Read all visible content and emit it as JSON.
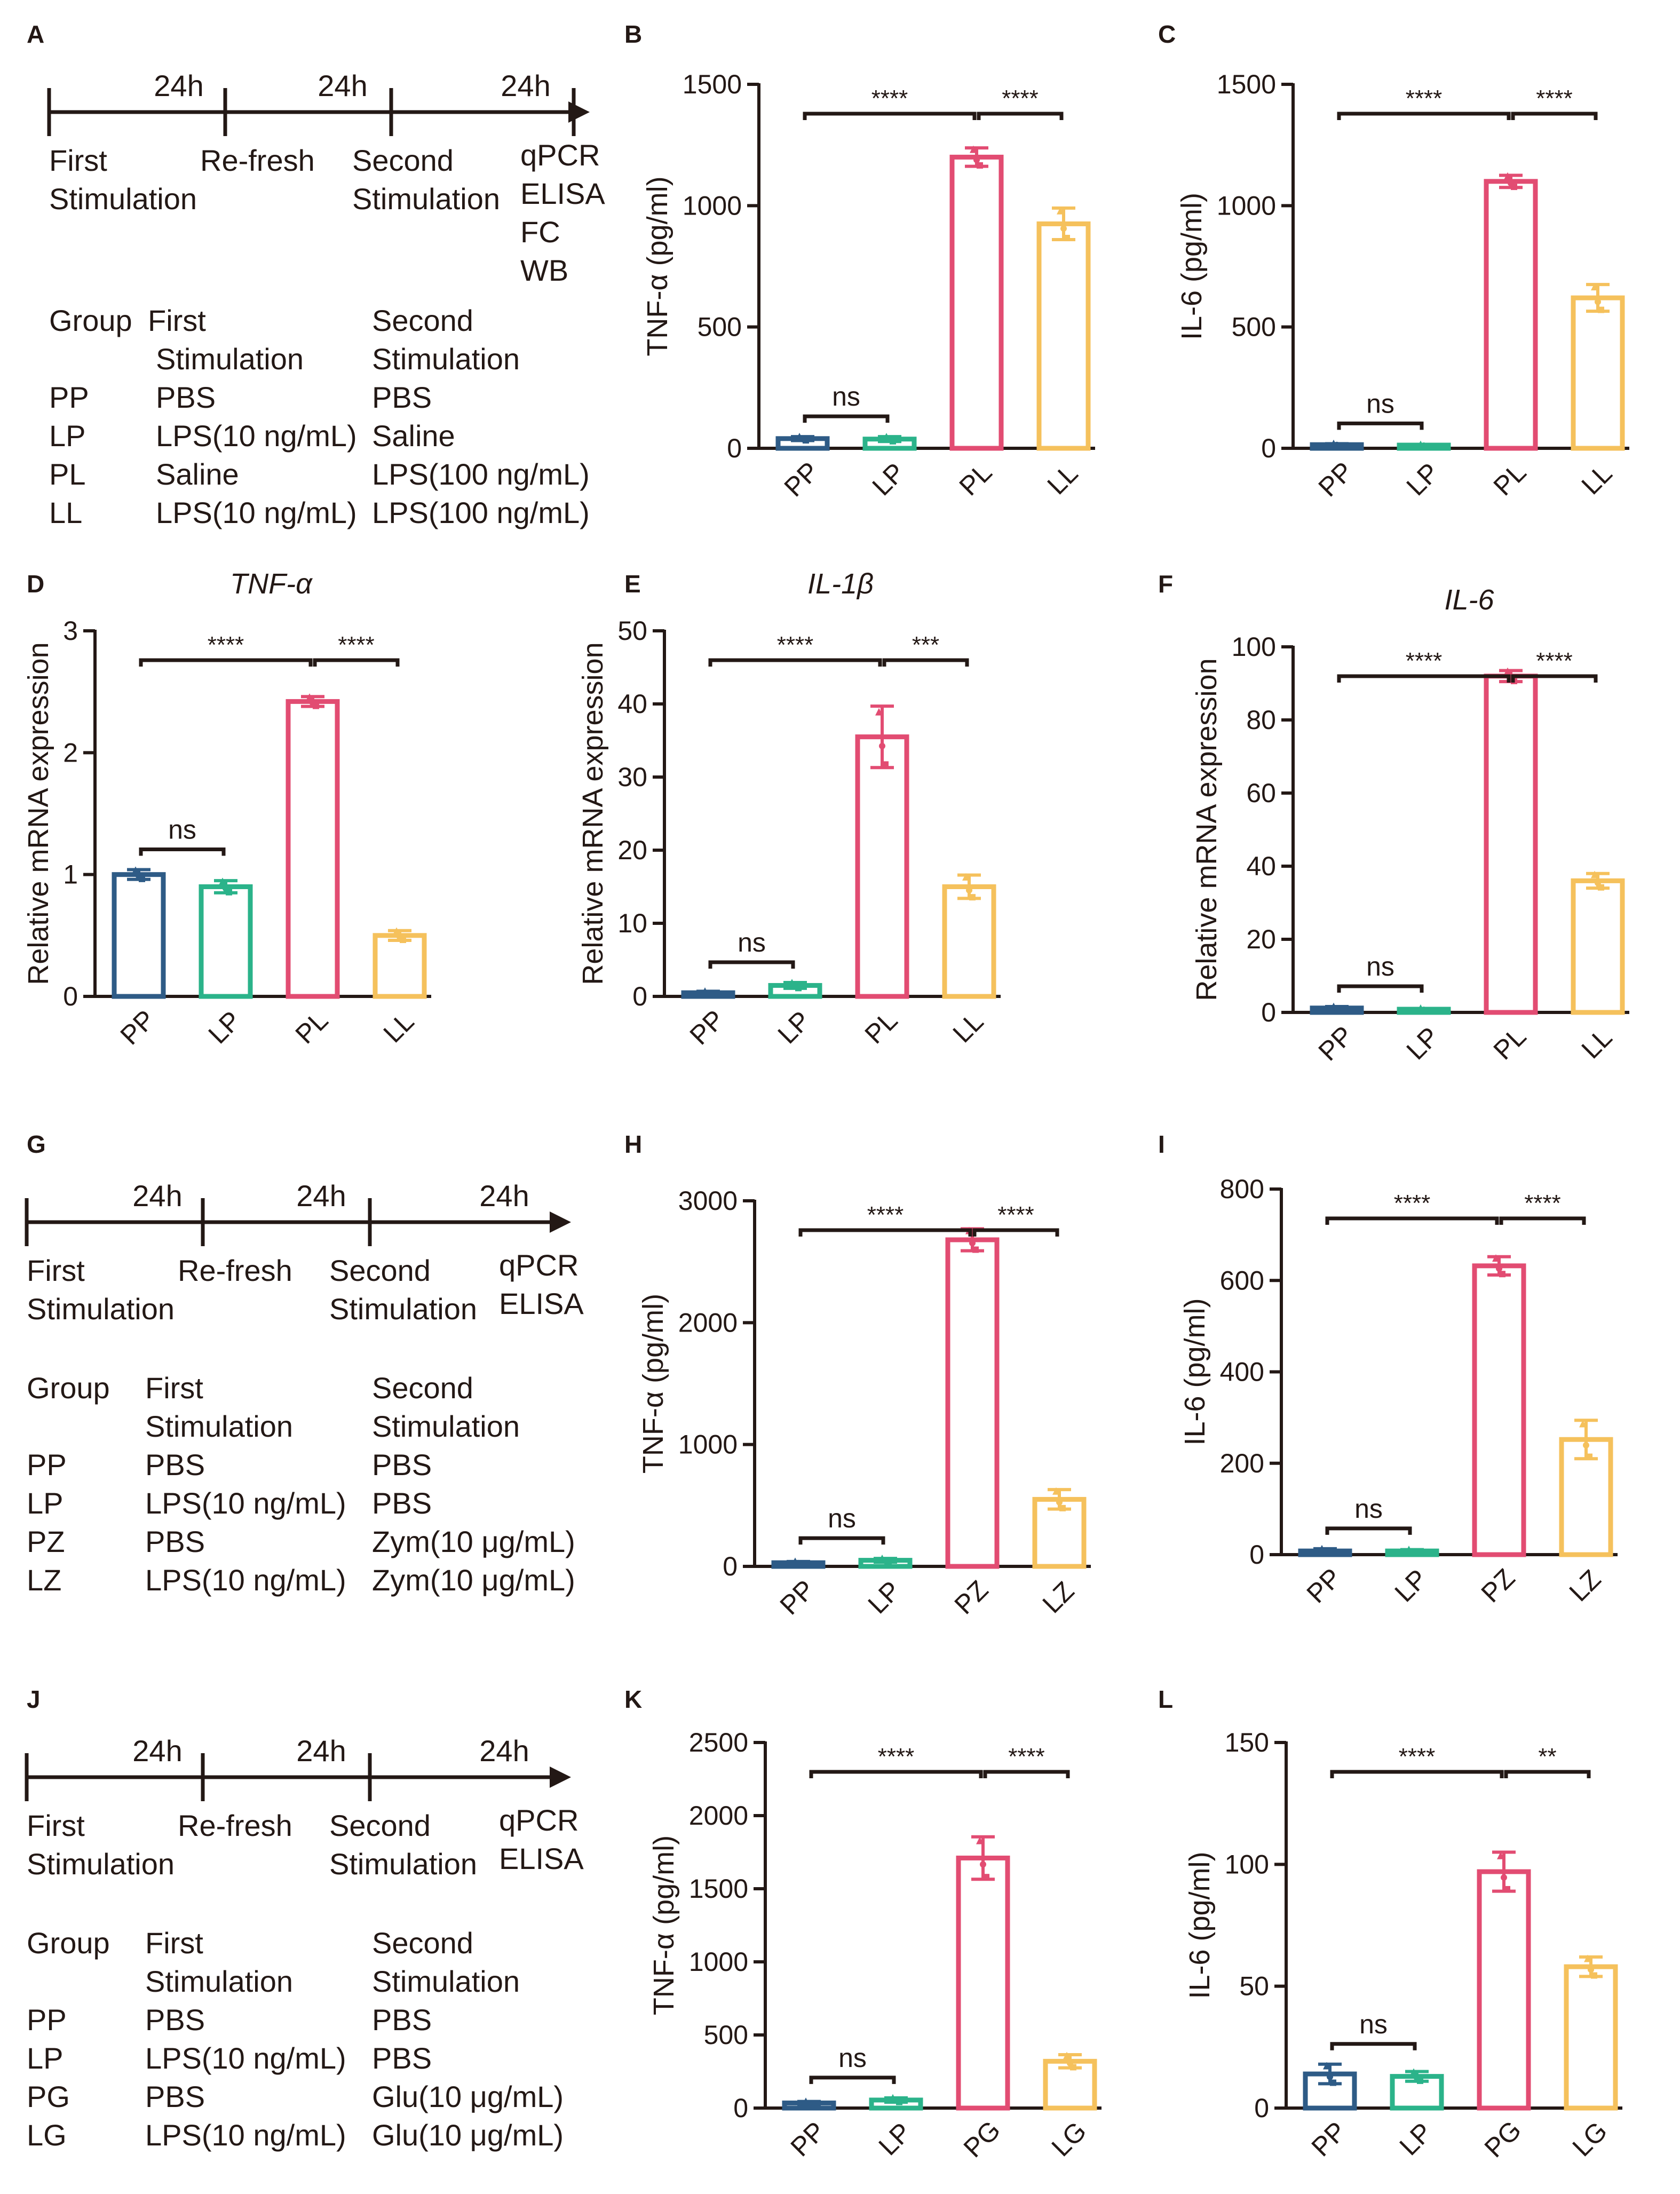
{
  "colors": {
    "PP": "#2e5b86",
    "LP": "#2bb38a",
    "PL": "#e24c72",
    "LL": "#f5c15c",
    "axis": "#231815"
  },
  "schemes": [
    {
      "label": "A",
      "durations": [
        "24h",
        "24h",
        "24h"
      ],
      "steps": [
        [
          "First",
          "Stimulation"
        ],
        [
          "Re-fresh"
        ],
        [
          "Second",
          "Stimulation"
        ],
        [
          "qPCR",
          "ELISA",
          "FC",
          "WB"
        ]
      ],
      "headers": [
        "Group",
        "First",
        "Stimulation",
        "Second",
        "Stimulation"
      ],
      "rows": [
        {
          "group": "PP",
          "first": "PBS",
          "second": "PBS"
        },
        {
          "group": "LP",
          "first": "LPS(10 ng/mL)",
          "second": "Saline"
        },
        {
          "group": "PL",
          "first": "Saline",
          "second": "LPS(100 ng/mL)"
        },
        {
          "group": "LL",
          "first": "LPS(10 ng/mL)",
          "second": "LPS(100 ng/mL)"
        }
      ]
    },
    {
      "label": "G",
      "durations": [
        "24h",
        "24h",
        "24h"
      ],
      "steps": [
        [
          "First",
          "Stimulation"
        ],
        [
          "Re-fresh"
        ],
        [
          "Second",
          "Stimulation"
        ],
        [
          "qPCR",
          "ELISA"
        ]
      ],
      "headers": [
        "Group",
        "First",
        "Stimulation",
        "Second",
        "Stimulation"
      ],
      "rows": [
        {
          "group": "PP",
          "first": "PBS",
          "second": "PBS"
        },
        {
          "group": "LP",
          "first": "LPS(10 ng/mL)",
          "second": "PBS"
        },
        {
          "group": "PZ",
          "first": "PBS",
          "second": "Zym(10 μg/mL)"
        },
        {
          "group": "LZ",
          "first": "LPS(10 ng/mL)",
          "second": "Zym(10 μg/mL)"
        }
      ]
    },
    {
      "label": "J",
      "durations": [
        "24h",
        "24h",
        "24h"
      ],
      "steps": [
        [
          "First",
          "Stimulation"
        ],
        [
          "Re-fresh"
        ],
        [
          "Second",
          "Stimulation"
        ],
        [
          "qPCR",
          "ELISA"
        ]
      ],
      "headers": [
        "Group",
        "First",
        "Stimulation",
        "Second",
        "Stimulation"
      ],
      "rows": [
        {
          "group": "PP",
          "first": "PBS",
          "second": "PBS"
        },
        {
          "group": "LP",
          "first": "LPS(10 ng/mL)",
          "second": "PBS"
        },
        {
          "group": "PG",
          "first": "PBS",
          "second": "Glu(10 μg/mL)"
        },
        {
          "group": "LG",
          "first": "LPS(10 ng/mL)",
          "second": "Glu(10 μg/mL)"
        }
      ]
    }
  ],
  "chart_data": [
    {
      "label": "B",
      "type": "bar",
      "title": "",
      "ylabel": "TNF-α (pg/ml)",
      "categories": [
        "PP",
        "LP",
        "PL",
        "LL"
      ],
      "values": [
        40,
        38,
        1200,
        925
      ],
      "errors": [
        8,
        10,
        38,
        65
      ],
      "ylim": [
        0,
        1500
      ],
      "yticks": [
        0,
        500,
        1000,
        1500
      ],
      "comparisons": [
        {
          "a": 0,
          "b": 1,
          "text": "ns"
        },
        {
          "a": 0,
          "b": 2,
          "text": "****"
        },
        {
          "a": 2,
          "b": 3,
          "text": "****"
        }
      ]
    },
    {
      "label": "C",
      "type": "bar",
      "title": "",
      "ylabel": "IL-6 (pg/ml)",
      "categories": [
        "PP",
        "LP",
        "PL",
        "LL"
      ],
      "values": [
        15,
        12,
        1100,
        620
      ],
      "errors": [
        4,
        3,
        25,
        55
      ],
      "ylim": [
        0,
        1500
      ],
      "yticks": [
        0,
        500,
        1000,
        1500
      ],
      "comparisons": [
        {
          "a": 0,
          "b": 1,
          "text": "ns"
        },
        {
          "a": 0,
          "b": 2,
          "text": "****"
        },
        {
          "a": 2,
          "b": 3,
          "text": "****"
        }
      ]
    },
    {
      "label": "D",
      "type": "bar",
      "title": "TNF-α",
      "ylabel": "Relative mRNA expression",
      "categories": [
        "PP",
        "LP",
        "PL",
        "LL"
      ],
      "values": [
        1.0,
        0.9,
        2.42,
        0.5
      ],
      "errors": [
        0.04,
        0.05,
        0.04,
        0.04
      ],
      "ylim": [
        0,
        3
      ],
      "yticks": [
        0,
        1,
        2,
        3
      ],
      "comparisons": [
        {
          "a": 0,
          "b": 1,
          "text": "ns"
        },
        {
          "a": 0,
          "b": 2,
          "text": "****"
        },
        {
          "a": 2,
          "b": 3,
          "text": "****"
        }
      ]
    },
    {
      "label": "E",
      "type": "bar",
      "title": "IL-1β",
      "ylabel": "Relative mRNA expression",
      "categories": [
        "PP",
        "LP",
        "PL",
        "LL"
      ],
      "values": [
        0.5,
        1.5,
        35.5,
        15
      ],
      "errors": [
        0.2,
        0.4,
        4.2,
        1.6
      ],
      "ylim": [
        0,
        50
      ],
      "yticks": [
        0,
        10,
        20,
        30,
        40,
        50
      ],
      "comparisons": [
        {
          "a": 0,
          "b": 1,
          "text": "ns"
        },
        {
          "a": 0,
          "b": 2,
          "text": "****"
        },
        {
          "a": 2,
          "b": 3,
          "text": "***"
        }
      ]
    },
    {
      "label": "F",
      "type": "bar",
      "title": "IL-6",
      "ylabel": "Relative mRNA expression",
      "categories": [
        "PP",
        "LP",
        "PL",
        "LL"
      ],
      "values": [
        1.2,
        0.8,
        92,
        36
      ],
      "errors": [
        0.4,
        0.3,
        1.5,
        2
      ],
      "ylim": [
        0,
        100
      ],
      "yticks": [
        0,
        20,
        40,
        60,
        80,
        100
      ],
      "comparisons": [
        {
          "a": 0,
          "b": 1,
          "text": "ns"
        },
        {
          "a": 0,
          "b": 2,
          "text": "****"
        },
        {
          "a": 2,
          "b": 3,
          "text": "****"
        }
      ]
    },
    {
      "label": "H",
      "type": "bar",
      "title": "",
      "ylabel": "TNF-α (pg/ml)",
      "categories": [
        "PP",
        "LP",
        "PZ",
        "LZ"
      ],
      "values": [
        30,
        50,
        2680,
        550
      ],
      "errors": [
        10,
        15,
        90,
        80
      ],
      "ylim": [
        0,
        3000
      ],
      "yticks": [
        0,
        1000,
        2000,
        3000
      ],
      "comparisons": [
        {
          "a": 0,
          "b": 1,
          "text": "ns"
        },
        {
          "a": 0,
          "b": 2,
          "text": "****"
        },
        {
          "a": 2,
          "b": 3,
          "text": "****"
        }
      ]
    },
    {
      "label": "I",
      "type": "bar",
      "title": "",
      "ylabel": "IL-6 (pg/ml)",
      "categories": [
        "PP",
        "LP",
        "PZ",
        "LZ"
      ],
      "values": [
        8,
        8,
        632,
        252
      ],
      "errors": [
        5,
        3,
        20,
        42
      ],
      "ylim": [
        0,
        800
      ],
      "yticks": [
        0,
        200,
        400,
        600,
        800
      ],
      "comparisons": [
        {
          "a": 0,
          "b": 1,
          "text": "ns"
        },
        {
          "a": 0,
          "b": 2,
          "text": "****"
        },
        {
          "a": 2,
          "b": 3,
          "text": "****"
        }
      ]
    },
    {
      "label": "K",
      "type": "bar",
      "title": "",
      "ylabel": "TNF-α (pg/ml)",
      "categories": [
        "PP",
        "LP",
        "PG",
        "LG"
      ],
      "values": [
        35,
        55,
        1710,
        320
      ],
      "errors": [
        10,
        15,
        145,
        45
      ],
      "ylim": [
        0,
        2500
      ],
      "yticks": [
        0,
        500,
        1000,
        1500,
        2000,
        2500
      ],
      "comparisons": [
        {
          "a": 0,
          "b": 1,
          "text": "ns"
        },
        {
          "a": 0,
          "b": 2,
          "text": "****"
        },
        {
          "a": 2,
          "b": 3,
          "text": "****"
        }
      ]
    },
    {
      "label": "L",
      "type": "bar",
      "title": "",
      "ylabel": "IL-6 (pg/ml)",
      "categories": [
        "PP",
        "LP",
        "PG",
        "LG"
      ],
      "values": [
        14,
        13,
        97,
        58
      ],
      "errors": [
        4,
        2,
        8,
        4
      ],
      "ylim": [
        0,
        150
      ],
      "yticks": [
        0,
        50,
        100,
        150
      ],
      "comparisons": [
        {
          "a": 0,
          "b": 1,
          "text": "ns"
        },
        {
          "a": 0,
          "b": 2,
          "text": "****"
        },
        {
          "a": 2,
          "b": 3,
          "text": "**"
        }
      ]
    }
  ]
}
